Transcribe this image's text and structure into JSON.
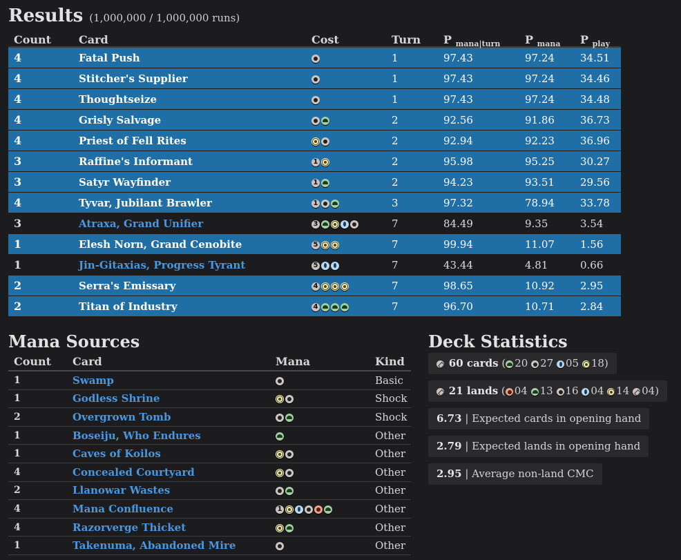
{
  "results": {
    "title": "Results",
    "subtitle": "(1,000,000 / 1,000,000 runs)",
    "headers": {
      "count": "Count",
      "card": "Card",
      "cost": "Cost",
      "turn": "Turn",
      "p": "P",
      "mana_turn_sub": "mana|turn",
      "mana_sub": "mana",
      "play_sub": "play"
    },
    "rows": [
      {
        "count": "4",
        "card": "Fatal Push",
        "cost": [
          "B"
        ],
        "turn": "1",
        "p_mana_turn": "97.43",
        "p_mana": "97.24",
        "p_play": "34.51",
        "highlight": true
      },
      {
        "count": "4",
        "card": "Stitcher's Supplier",
        "cost": [
          "B"
        ],
        "turn": "1",
        "p_mana_turn": "97.43",
        "p_mana": "97.24",
        "p_play": "34.46",
        "highlight": true
      },
      {
        "count": "4",
        "card": "Thoughtseize",
        "cost": [
          "B"
        ],
        "turn": "1",
        "p_mana_turn": "97.43",
        "p_mana": "97.24",
        "p_play": "34.48",
        "highlight": true
      },
      {
        "count": "4",
        "card": "Grisly Salvage",
        "cost": [
          "B",
          "G"
        ],
        "turn": "2",
        "p_mana_turn": "92.56",
        "p_mana": "91.86",
        "p_play": "36.73",
        "highlight": true
      },
      {
        "count": "4",
        "card": "Priest of Fell Rites",
        "cost": [
          "W",
          "B"
        ],
        "turn": "2",
        "p_mana_turn": "92.94",
        "p_mana": "92.23",
        "p_play": "36.96",
        "highlight": true
      },
      {
        "count": "3",
        "card": "Raffine's Informant",
        "cost": [
          "1",
          "W"
        ],
        "turn": "2",
        "p_mana_turn": "95.98",
        "p_mana": "95.25",
        "p_play": "30.27",
        "highlight": true
      },
      {
        "count": "3",
        "card": "Satyr Wayfinder",
        "cost": [
          "1",
          "G"
        ],
        "turn": "2",
        "p_mana_turn": "94.23",
        "p_mana": "93.51",
        "p_play": "29.56",
        "highlight": true
      },
      {
        "count": "4",
        "card": "Tyvar, Jubilant Brawler",
        "cost": [
          "1",
          "B",
          "G"
        ],
        "turn": "3",
        "p_mana_turn": "97.32",
        "p_mana": "78.94",
        "p_play": "33.78",
        "highlight": true
      },
      {
        "count": "3",
        "card": "Atraxa, Grand Unifier",
        "cost": [
          "3",
          "G",
          "W",
          "U",
          "B"
        ],
        "turn": "7",
        "p_mana_turn": "84.49",
        "p_mana": "9.35",
        "p_play": "3.54",
        "highlight": false
      },
      {
        "count": "1",
        "card": "Elesh Norn, Grand Cenobite",
        "cost": [
          "5",
          "W",
          "W"
        ],
        "turn": "7",
        "p_mana_turn": "99.94",
        "p_mana": "11.07",
        "p_play": "1.56",
        "highlight": true
      },
      {
        "count": "1",
        "card": "Jin-Gitaxias, Progress Tyrant",
        "cost": [
          "5",
          "U",
          "U"
        ],
        "turn": "7",
        "p_mana_turn": "43.44",
        "p_mana": "4.81",
        "p_play": "0.66",
        "highlight": false
      },
      {
        "count": "2",
        "card": "Serra's Emissary",
        "cost": [
          "4",
          "W",
          "W",
          "W"
        ],
        "turn": "7",
        "p_mana_turn": "98.65",
        "p_mana": "10.92",
        "p_play": "2.95",
        "highlight": true
      },
      {
        "count": "2",
        "card": "Titan of Industry",
        "cost": [
          "4",
          "G",
          "G",
          "G"
        ],
        "turn": "7",
        "p_mana_turn": "96.70",
        "p_mana": "10.71",
        "p_play": "2.84",
        "highlight": true
      }
    ]
  },
  "mana_sources": {
    "title": "Mana Sources",
    "headers": {
      "count": "Count",
      "card": "Card",
      "mana": "Mana",
      "kind": "Kind"
    },
    "rows": [
      {
        "count": "1",
        "card": "Swamp",
        "mana": [
          "B"
        ],
        "kind": "Basic"
      },
      {
        "count": "1",
        "card": "Godless Shrine",
        "mana": [
          "W",
          "B"
        ],
        "kind": "Shock"
      },
      {
        "count": "2",
        "card": "Overgrown Tomb",
        "mana": [
          "B",
          "G"
        ],
        "kind": "Shock"
      },
      {
        "count": "1",
        "card": "Boseiju, Who Endures",
        "mana": [
          "G"
        ],
        "kind": "Other"
      },
      {
        "count": "1",
        "card": "Caves of Koilos",
        "mana": [
          "W",
          "B"
        ],
        "kind": "Other"
      },
      {
        "count": "4",
        "card": "Concealed Courtyard",
        "mana": [
          "W",
          "B"
        ],
        "kind": "Other"
      },
      {
        "count": "2",
        "card": "Llanowar Wastes",
        "mana": [
          "B",
          "G"
        ],
        "kind": "Other"
      },
      {
        "count": "4",
        "card": "Mana Confluence",
        "mana": [
          "1",
          "W",
          "U",
          "B",
          "R",
          "G"
        ],
        "kind": "Other"
      },
      {
        "count": "4",
        "card": "Razorverge Thicket",
        "mana": [
          "W",
          "G"
        ],
        "kind": "Other"
      },
      {
        "count": "1",
        "card": "Takenuma, Abandoned Mire",
        "mana": [
          "B"
        ],
        "kind": "Other"
      }
    ]
  },
  "deck_statistics": {
    "title": "Deck Statistics",
    "cards": {
      "value": "60 cards",
      "g": "20",
      "b": "27",
      "u": "05",
      "w": "18"
    },
    "lands": {
      "value": "21 lands",
      "r": "04",
      "g": "13",
      "b": "16",
      "u": "04",
      "w": "14",
      "c": "04"
    },
    "opening_cards": {
      "value": "6.73",
      "label": "| Expected cards in opening hand"
    },
    "opening_lands": {
      "value": "2.79",
      "label": "| Expected lands in opening hand"
    },
    "avg_cmc": {
      "value": "2.95",
      "label": "| Average non-land CMC"
    }
  },
  "colors": {
    "highlight_row": "#1f6ea6",
    "link_blue": "#4a97de",
    "background": "#1c1c1e"
  }
}
